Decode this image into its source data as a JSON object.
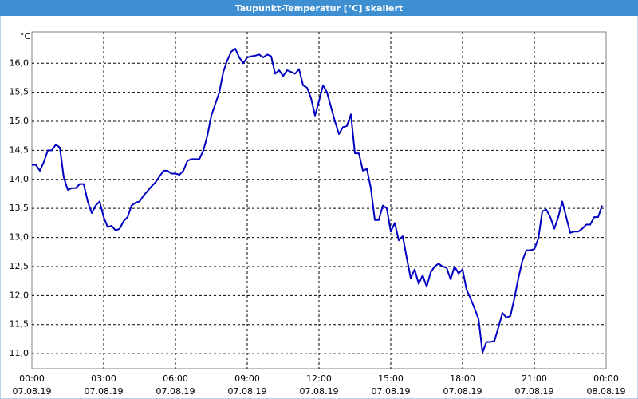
{
  "window_title": "Taupunkt-Temperatur [°C] skaliert",
  "chart_data": {
    "type": "line",
    "y_unit": "°C",
    "color": "#0000c0",
    "grid": true,
    "xlim": [
      0,
      1440
    ],
    "xticks": [
      {
        "value": 0,
        "label": "00:00"
      },
      {
        "value": 180,
        "label": "03:00"
      },
      {
        "value": 360,
        "label": "06:00"
      },
      {
        "value": 540,
        "label": "09:00"
      },
      {
        "value": 720,
        "label": "12:00"
      },
      {
        "value": 900,
        "label": "15:00"
      },
      {
        "value": 1080,
        "label": "18:00"
      },
      {
        "value": 1260,
        "label": "21:00"
      },
      {
        "value": 1440,
        "label": "00:00"
      }
    ],
    "xtick_dates": [
      "07.08.19",
      "07.08.19",
      "07.08.19",
      "07.08.19",
      "07.08.19",
      "07.08.19",
      "07.08.19",
      "07.08.19",
      "08.08.19"
    ],
    "ylim": [
      10.74,
      16.54
    ],
    "yticks": [
      {
        "value": 11,
        "label": "11,0"
      },
      {
        "value": 11.5,
        "label": "11,5"
      },
      {
        "value": 12,
        "label": "12,0"
      },
      {
        "value": 12.5,
        "label": "12,5"
      },
      {
        "value": 13,
        "label": "13,0"
      },
      {
        "value": 13.5,
        "label": "13,5"
      },
      {
        "value": 14,
        "label": "14,0"
      },
      {
        "value": 14.5,
        "label": "14,5"
      },
      {
        "value": 15,
        "label": "15,0"
      },
      {
        "value": 15.5,
        "label": "15,5"
      },
      {
        "value": 16,
        "label": "16,0"
      }
    ],
    "x": [
      0,
      10,
      20,
      30,
      40,
      50,
      60,
      70,
      80,
      90,
      100,
      110,
      120,
      130,
      140,
      150,
      160,
      170,
      180,
      190,
      200,
      210,
      220,
      230,
      240,
      250,
      260,
      270,
      280,
      290,
      300,
      310,
      320,
      330,
      340,
      350,
      360,
      370,
      380,
      390,
      400,
      410,
      420,
      430,
      440,
      450,
      460,
      470,
      480,
      490,
      500,
      510,
      520,
      530,
      540,
      550,
      560,
      570,
      580,
      590,
      600,
      610,
      620,
      630,
      640,
      650,
      660,
      670,
      680,
      690,
      700,
      710,
      720,
      730,
      740,
      750,
      760,
      770,
      780,
      790,
      800,
      810,
      820,
      830,
      840,
      850,
      860,
      870,
      880,
      890,
      900,
      910,
      920,
      930,
      940,
      950,
      960,
      970,
      980,
      990,
      1000,
      1010,
      1020,
      1030,
      1040,
      1050,
      1060,
      1070,
      1080,
      1090,
      1100,
      1110,
      1120,
      1130,
      1140,
      1150,
      1160,
      1170,
      1180,
      1190,
      1200,
      1210,
      1220,
      1230,
      1240,
      1250,
      1260,
      1270,
      1280,
      1290,
      1300,
      1310,
      1320,
      1330,
      1340,
      1350,
      1360,
      1370,
      1380,
      1390,
      1400,
      1410,
      1420,
      1430
    ],
    "values": [
      14.25,
      14.25,
      14.15,
      14.3,
      14.5,
      14.5,
      14.6,
      14.55,
      14.03,
      13.82,
      13.85,
      13.85,
      13.92,
      13.92,
      13.62,
      13.42,
      13.55,
      13.62,
      13.35,
      13.18,
      13.2,
      13.12,
      13.15,
      13.28,
      13.35,
      13.55,
      13.6,
      13.62,
      13.72,
      13.8,
      13.88,
      13.95,
      14.05,
      14.15,
      14.15,
      14.1,
      14.1,
      14.08,
      14.15,
      14.32,
      14.35,
      14.35,
      14.35,
      14.5,
      14.75,
      15.1,
      15.3,
      15.5,
      15.85,
      16.05,
      16.2,
      16.25,
      16.1,
      16.0,
      16.1,
      16.12,
      16.13,
      16.15,
      16.1,
      16.15,
      16.12,
      15.82,
      15.88,
      15.78,
      15.88,
      15.85,
      15.82,
      15.9,
      15.62,
      15.58,
      15.4,
      15.1,
      15.35,
      15.62,
      15.5,
      15.25,
      15.0,
      14.78,
      14.9,
      14.92,
      15.12,
      14.45,
      14.45,
      14.15,
      14.18,
      13.85,
      13.3,
      13.3,
      13.55,
      13.5,
      13.1,
      13.25,
      12.95,
      13.02,
      12.65,
      12.3,
      12.45,
      12.2,
      12.35,
      12.15,
      12.4,
      12.5,
      12.55,
      12.5,
      12.48,
      12.28,
      12.5,
      12.38,
      12.45,
      12.1,
      11.95,
      11.78,
      11.6,
      11.02,
      11.2,
      11.2,
      11.22,
      11.45,
      11.7,
      11.62,
      11.65,
      11.95,
      12.3,
      12.6,
      12.78,
      12.78,
      12.8,
      12.98,
      13.45,
      13.48,
      13.35,
      13.15,
      13.35,
      13.62,
      13.35,
      13.08,
      13.1,
      13.1,
      13.15,
      13.22,
      13.22,
      13.35,
      13.35,
      13.55
    ]
  }
}
